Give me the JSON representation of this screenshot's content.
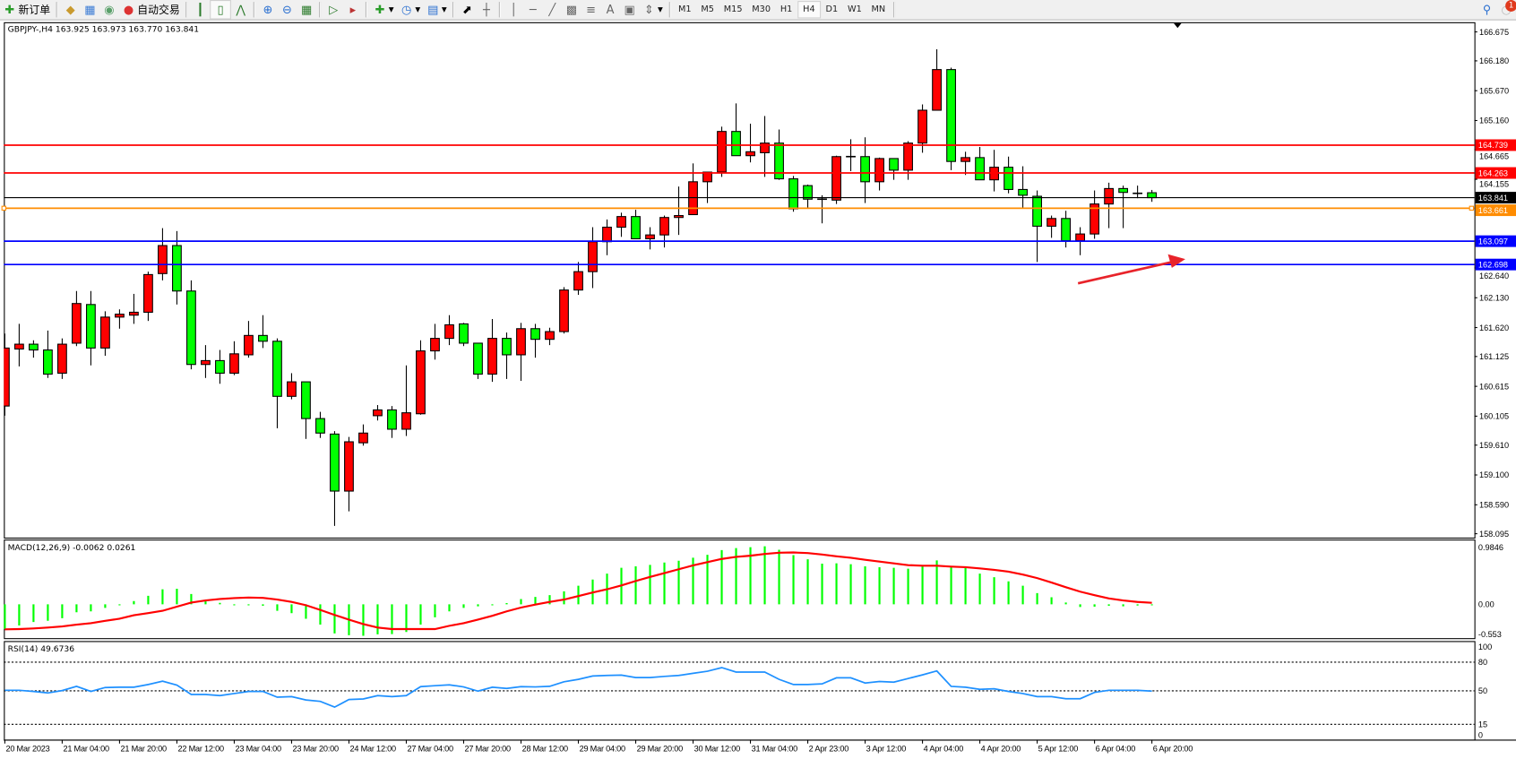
{
  "toolbar": {
    "new_order_label": "新订单",
    "auto_trading_label": "自动交易",
    "icons": [
      "new-order-icon",
      "gold-icon",
      "market-watch-icon",
      "signals-icon",
      "auto-trading-icon",
      "bar-chart-icon",
      "candlestick-icon",
      "line-chart-icon",
      "zoom-in-icon",
      "zoom-out-icon",
      "tile-windows-icon",
      "chart-shift-icon",
      "autoscroll-icon",
      "indicators-icon",
      "periods-icon",
      "templates-icon",
      "cursor-icon",
      "crosshair-icon",
      "vertical-line-icon",
      "horizontal-line-icon",
      "trendline-icon",
      "equidistant-channel-icon",
      "fibonacci-icon",
      "text-icon",
      "text-label-icon",
      "arrows-icon"
    ],
    "timeframes": [
      "M1",
      "M5",
      "M15",
      "M30",
      "H1",
      "H4",
      "D1",
      "W1",
      "MN"
    ],
    "active_timeframe": "H4",
    "notification_count": "1"
  },
  "chart": {
    "header": "GBPJPY-,H4  163.925 163.973 163.770 163.841",
    "symbol": "GBPJPY-",
    "timeframe": "H4",
    "colors": {
      "bull": "#ff0000",
      "bear": "#00ff00",
      "macd_hist": "#00ff00",
      "macd_signal": "#ff0000",
      "rsi": "#1e90ff",
      "arrow": "#e8232a"
    }
  },
  "chart_data": [
    {
      "type": "candlestick",
      "title": "GBPJPY-,H4",
      "ylim": [
        158.095,
        166.675
      ],
      "price_ticks": [
        "166.675",
        "166.180",
        "165.670",
        "165.160",
        "164.665",
        "164.155",
        "162.640",
        "162.130",
        "161.620",
        "161.125",
        "160.615",
        "160.105",
        "159.610",
        "159.100",
        "158.590",
        "158.095"
      ],
      "time_labels": [
        "20 Mar 2023",
        "21 Mar 04:00",
        "21 Mar 20:00",
        "22 Mar 12:00",
        "23 Mar 04:00",
        "23 Mar 20:00",
        "24 Mar 12:00",
        "27 Mar 04:00",
        "27 Mar 20:00",
        "28 Mar 12:00",
        "29 Mar 04:00",
        "29 Mar 20:00",
        "30 Mar 12:00",
        "31 Mar 04:00",
        "2 Apr 23:00",
        "3 Apr 12:00",
        "4 Apr 04:00",
        "4 Apr 20:00",
        "5 Apr 12:00",
        "6 Apr 04:00",
        "6 Apr 20:00"
      ],
      "ohlc": [
        [
          160.278,
          161.518,
          160.113,
          161.27
        ],
        [
          161.253,
          161.683,
          160.956,
          161.336
        ],
        [
          161.336,
          161.402,
          161.105,
          161.237
        ],
        [
          161.237,
          161.568,
          160.758,
          160.824
        ],
        [
          160.84,
          161.435,
          160.741,
          161.336
        ],
        [
          161.353,
          162.245,
          161.303,
          162.031
        ],
        [
          162.014,
          162.245,
          160.973,
          161.27
        ],
        [
          161.27,
          161.898,
          161.138,
          161.799
        ],
        [
          161.799,
          161.931,
          161.601,
          161.849
        ],
        [
          161.832,
          162.196,
          161.683,
          161.882
        ],
        [
          161.882,
          162.576,
          161.733,
          162.526
        ],
        [
          162.543,
          163.32,
          162.427,
          163.022
        ],
        [
          163.022,
          163.27,
          162.014,
          162.245
        ],
        [
          162.245,
          162.427,
          160.906,
          160.989
        ],
        [
          160.989,
          161.32,
          160.758,
          161.055
        ],
        [
          161.055,
          161.237,
          160.659,
          160.84
        ],
        [
          160.84,
          161.386,
          160.807,
          161.171
        ],
        [
          161.154,
          161.733,
          161.105,
          161.485
        ],
        [
          161.485,
          161.832,
          161.27,
          161.386
        ],
        [
          161.386,
          161.435,
          159.898,
          160.444
        ],
        [
          160.444,
          160.84,
          160.394,
          160.692
        ],
        [
          160.692,
          160.692,
          159.716,
          160.064
        ],
        [
          160.064,
          160.179,
          159.733,
          159.816
        ],
        [
          159.799,
          159.849,
          158.229,
          158.824
        ],
        [
          158.824,
          159.75,
          158.477,
          159.667
        ],
        [
          159.65,
          159.964,
          159.601,
          159.816
        ],
        [
          160.113,
          160.295,
          160.031,
          160.212
        ],
        [
          160.212,
          160.278,
          159.733,
          159.882
        ],
        [
          159.882,
          160.973,
          159.766,
          160.163
        ],
        [
          160.146,
          161.402,
          160.13,
          161.221
        ],
        [
          161.221,
          161.683,
          161.072,
          161.435
        ],
        [
          161.435,
          161.832,
          161.32,
          161.667
        ],
        [
          161.683,
          161.7,
          161.303,
          161.353
        ],
        [
          161.353,
          161.353,
          160.741,
          160.824
        ],
        [
          160.824,
          161.766,
          160.692,
          161.435
        ],
        [
          161.435,
          161.535,
          160.741,
          161.154
        ],
        [
          161.154,
          161.7,
          160.708,
          161.601
        ],
        [
          161.601,
          161.683,
          161.105,
          161.419
        ],
        [
          161.419,
          161.617,
          161.32,
          161.551
        ],
        [
          161.551,
          162.311,
          161.518,
          162.262
        ],
        [
          162.262,
          162.741,
          162.179,
          162.576
        ],
        [
          162.576,
          163.336,
          162.295,
          163.088
        ],
        [
          163.088,
          163.468,
          162.857,
          163.336
        ],
        [
          163.336,
          163.584,
          163.171,
          163.518
        ],
        [
          163.518,
          163.634,
          163.138,
          163.138
        ],
        [
          163.138,
          163.336,
          162.956,
          163.204
        ],
        [
          163.204,
          163.535,
          162.989,
          163.502
        ],
        [
          163.502,
          164.031,
          163.204,
          163.535
        ],
        [
          163.551,
          164.427,
          163.551,
          164.113
        ],
        [
          164.113,
          164.278,
          163.749,
          164.278
        ],
        [
          164.278,
          165.055,
          164.196,
          164.973
        ],
        [
          164.973,
          165.452,
          164.559,
          164.559
        ],
        [
          164.559,
          165.105,
          164.444,
          164.626
        ],
        [
          164.609,
          165.237,
          164.196,
          164.774
        ],
        [
          164.774,
          165.006,
          164.146,
          164.163
        ],
        [
          164.163,
          164.212,
          163.601,
          163.65
        ],
        [
          164.047,
          164.064,
          163.667,
          163.815
        ],
        [
          163.815,
          163.882,
          163.402,
          163.799
        ],
        [
          163.799,
          164.559,
          163.733,
          164.543
        ],
        [
          164.543,
          164.84,
          164.295,
          164.543
        ],
        [
          164.543,
          164.873,
          163.749,
          164.113
        ],
        [
          164.113,
          164.526,
          163.964,
          164.51
        ],
        [
          164.51,
          164.51,
          164.146,
          164.311
        ],
        [
          164.311,
          164.807,
          164.146,
          164.774
        ],
        [
          164.774,
          165.435,
          164.609,
          165.336
        ],
        [
          165.336,
          166.378,
          165.336,
          166.031
        ],
        [
          166.031,
          166.064,
          164.311,
          164.46
        ],
        [
          164.46,
          164.626,
          164.229,
          164.526
        ],
        [
          164.526,
          164.708,
          164.146,
          164.146
        ],
        [
          164.146,
          164.659,
          163.948,
          164.361
        ],
        [
          164.361,
          164.543,
          163.915,
          163.981
        ],
        [
          163.981,
          164.378,
          163.667,
          163.882
        ],
        [
          163.865,
          163.964,
          162.741,
          163.353
        ],
        [
          163.353,
          163.535,
          163.154,
          163.485
        ],
        [
          163.485,
          163.617,
          162.989,
          163.105
        ],
        [
          163.105,
          163.336,
          162.857,
          163.22
        ],
        [
          163.22,
          163.964,
          163.138,
          163.733
        ],
        [
          163.733,
          164.097,
          163.32,
          163.997
        ],
        [
          163.997,
          164.047,
          163.32,
          163.931
        ],
        [
          163.915,
          164.047,
          163.832,
          163.915
        ],
        [
          163.925,
          163.973,
          163.77,
          163.841
        ]
      ],
      "horizontal_lines": [
        {
          "price": "164.739",
          "color": "#ff0000"
        },
        {
          "price": "164.263",
          "color": "#ff0000"
        },
        {
          "price": "163.841",
          "color": "#000000"
        },
        {
          "price": "163.661",
          "color": "#ff8c00"
        },
        {
          "price": "163.097",
          "color": "#0000ff"
        },
        {
          "price": "162.698",
          "color": "#0000ff"
        }
      ]
    },
    {
      "type": "bar+line",
      "title": "MACD(12,26,9) -0.0062 0.0261",
      "ylim": [
        -0.553,
        0.9846
      ],
      "ticks": [
        "0.9846",
        "0.00",
        "-0.553"
      ],
      "histogram": [
        -0.42,
        -0.36,
        -0.3,
        -0.28,
        -0.235,
        -0.135,
        -0.12,
        -0.06,
        -0.005,
        0.055,
        0.145,
        0.255,
        0.265,
        0.175,
        0.055,
        0.025,
        -0.01,
        -0.01,
        -0.025,
        -0.11,
        -0.15,
        -0.245,
        -0.345,
        -0.495,
        -0.525,
        -0.535,
        -0.51,
        -0.505,
        -0.47,
        -0.345,
        -0.22,
        -0.12,
        -0.06,
        -0.035,
        0.01,
        0.02,
        0.09,
        0.125,
        0.155,
        0.22,
        0.315,
        0.42,
        0.52,
        0.62,
        0.645,
        0.67,
        0.71,
        0.74,
        0.79,
        0.84,
        0.92,
        0.955,
        0.97,
        0.985,
        0.925,
        0.835,
        0.765,
        0.69,
        0.695,
        0.68,
        0.645,
        0.63,
        0.62,
        0.605,
        0.665,
        0.745,
        0.645,
        0.635,
        0.52,
        0.46,
        0.39,
        0.315,
        0.19,
        0.12,
        0.03,
        -0.045,
        -0.04,
        -0.025,
        -0.035,
        -0.02,
        -0.0062
      ],
      "signal": [
        -0.425,
        -0.42,
        -0.41,
        -0.395,
        -0.375,
        -0.345,
        -0.32,
        -0.28,
        -0.245,
        -0.185,
        -0.15,
        -0.11,
        -0.04,
        0.03,
        0.065,
        0.09,
        0.105,
        0.115,
        0.11,
        0.08,
        0.04,
        -0.015,
        -0.095,
        -0.18,
        -0.26,
        -0.335,
        -0.395,
        -0.42,
        -0.42,
        -0.42,
        -0.42,
        -0.365,
        -0.32,
        -0.26,
        -0.195,
        -0.12,
        -0.055,
        -0.005,
        0.04,
        0.08,
        0.14,
        0.2,
        0.255,
        0.32,
        0.395,
        0.465,
        0.53,
        0.595,
        0.66,
        0.715,
        0.77,
        0.805,
        0.825,
        0.855,
        0.875,
        0.88,
        0.87,
        0.845,
        0.815,
        0.79,
        0.755,
        0.725,
        0.695,
        0.665,
        0.655,
        0.655,
        0.64,
        0.63,
        0.61,
        0.585,
        0.555,
        0.505,
        0.445,
        0.37,
        0.29,
        0.215,
        0.155,
        0.1,
        0.065,
        0.04,
        0.0261
      ]
    },
    {
      "type": "line",
      "title": "RSI(14) 49.6736",
      "ylim": [
        0,
        100
      ],
      "ticks": [
        "100",
        "80",
        "50",
        "15",
        "0"
      ],
      "levels": [
        80,
        50,
        15
      ],
      "values": [
        50.6,
        50.6,
        49.4,
        47.8,
        50.3,
        54.7,
        49.4,
        53.5,
        53.8,
        53.8,
        56.6,
        60.1,
        56.0,
        46.2,
        46.2,
        45.0,
        47.2,
        49.4,
        49.4,
        43.4,
        44.0,
        40.5,
        39.0,
        33.0,
        40.9,
        41.5,
        45.0,
        44.0,
        45.0,
        54.4,
        55.4,
        56.3,
        54.1,
        49.7,
        53.8,
        52.5,
        54.4,
        54.1,
        54.7,
        59.5,
        62.0,
        65.5,
        66.1,
        66.4,
        63.9,
        63.9,
        65.1,
        66.1,
        68.3,
        70.5,
        74.3,
        69.6,
        69.6,
        69.6,
        62.0,
        56.6,
        56.6,
        57.3,
        63.6,
        63.6,
        58.2,
        59.8,
        59.1,
        62.9,
        66.7,
        70.8,
        54.7,
        53.8,
        51.6,
        52.2,
        49.4,
        47.2,
        44.0,
        44.0,
        41.8,
        41.8,
        48.4,
        50.6,
        50.6,
        50.6,
        49.67
      ]
    }
  ]
}
